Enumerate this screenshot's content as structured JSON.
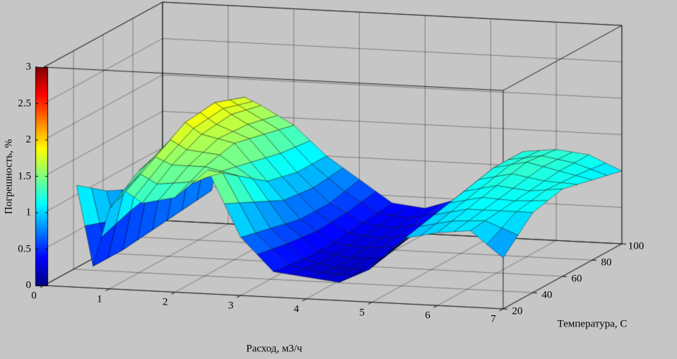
{
  "figure": {
    "background_color": "#c6c6c6",
    "colorbar": {
      "label": "Погрешность, %",
      "ticks": [
        0,
        0.5,
        1,
        1.5,
        2,
        2.5,
        3
      ],
      "min": 0,
      "max": 3,
      "colormap": "jet"
    }
  },
  "chart_data": {
    "type": "surface",
    "title": "",
    "xlabel": "Расход, м3/ч",
    "ylabel": "Температура, C",
    "zlabel": "Погрешность, %",
    "colormap": "jet",
    "grid": true,
    "xlim": [
      0,
      7
    ],
    "ylim": [
      20,
      100
    ],
    "zlim": [
      0,
      3
    ],
    "clim": [
      0,
      3
    ],
    "xticks": [
      0,
      1,
      2,
      3,
      4,
      5,
      6,
      7
    ],
    "yticks": [
      20,
      40,
      60,
      80,
      100
    ],
    "zticks": [
      0,
      0.5,
      1,
      1.5,
      2,
      2.5,
      3
    ],
    "x": [
      0.5,
      0.75,
      1,
      1.25,
      1.5,
      2,
      2.5,
      3,
      3.5,
      4,
      4.5,
      5,
      5.5,
      6,
      6.5,
      7
    ],
    "y": [
      20,
      40,
      60,
      80,
      100
    ],
    "z": [
      [
        1.4,
        0.3,
        1.1,
        1.35,
        1.2,
        1.3,
        1.7,
        0.8,
        0.35,
        0.3,
        0.25,
        0.5,
        0.9,
        1.0,
        1.05,
        0.7
      ],
      [
        1.1,
        0.3,
        1.4,
        1.6,
        1.5,
        1.5,
        1.4,
        0.7,
        0.3,
        0.2,
        0.2,
        0.6,
        1.0,
        1.1,
        1.1,
        1.1
      ],
      [
        0.9,
        0.35,
        1.55,
        1.85,
        1.7,
        1.6,
        1.1,
        0.6,
        0.3,
        0.25,
        0.3,
        0.7,
        1.1,
        1.2,
        1.15,
        1.2
      ],
      [
        0.8,
        0.4,
        1.7,
        1.9,
        1.75,
        1.5,
        1.0,
        0.6,
        0.35,
        0.3,
        0.4,
        0.8,
        1.2,
        1.3,
        1.2,
        1.1
      ],
      [
        0.9,
        0.45,
        1.6,
        1.75,
        1.65,
        1.4,
        1.0,
        0.7,
        0.4,
        0.35,
        0.5,
        0.9,
        1.2,
        1.25,
        1.2,
        1.0
      ]
    ]
  }
}
